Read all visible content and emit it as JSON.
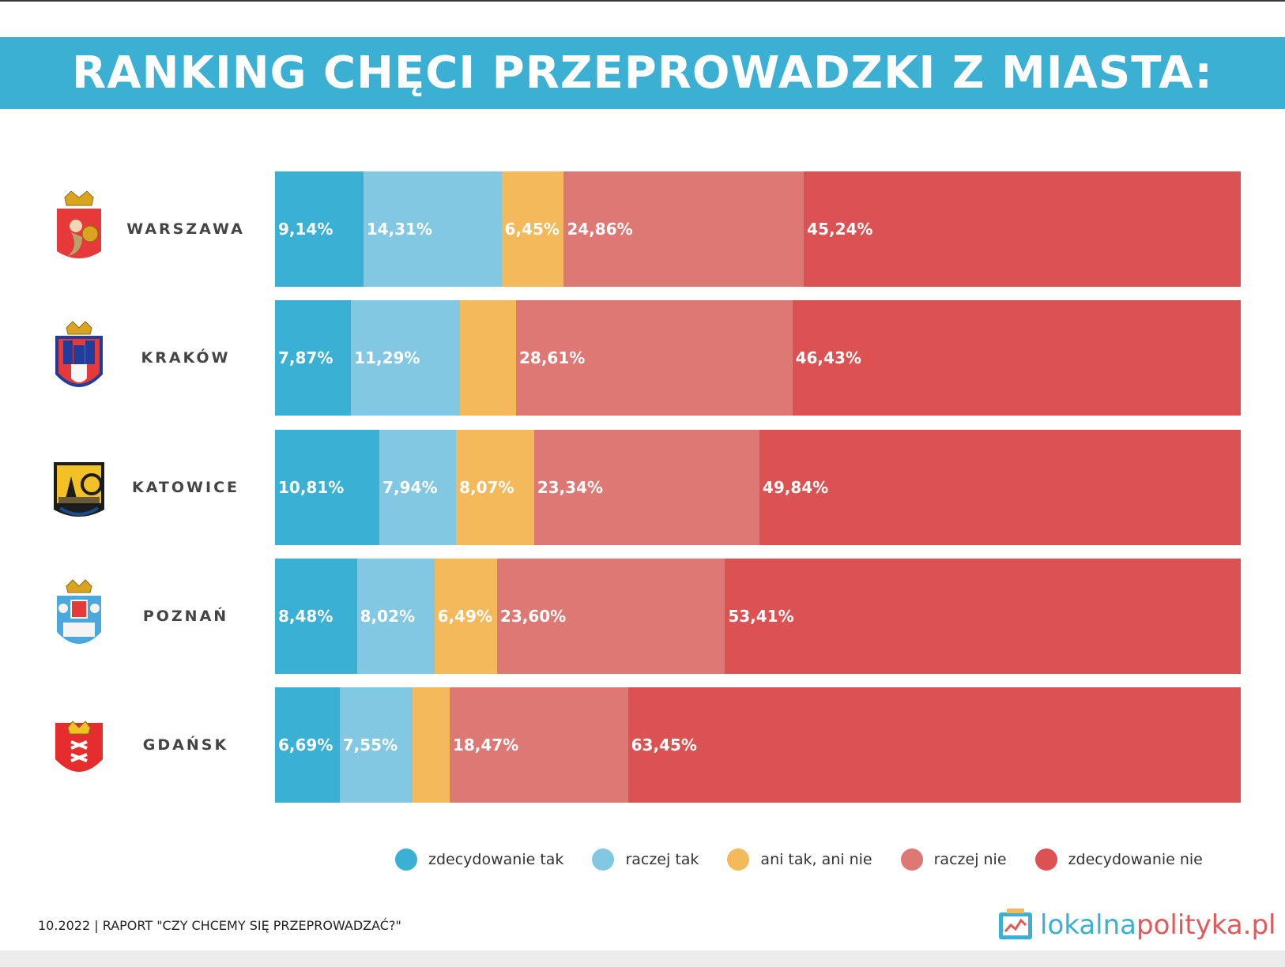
{
  "title": "RANKING CHĘCI PRZEPROWADZKI Z MIASTA:",
  "colors": [
    "#3ab0d4",
    "#82c8e2",
    "#f3b95a",
    "#de7875",
    "#dc5252"
  ],
  "chart_data": {
    "type": "bar",
    "orientation": "horizontal",
    "stacked": "percent",
    "categories": [
      "WARSZAWA",
      "KRAKÓW",
      "KATOWICE",
      "POZNAŃ",
      "GDAŃSK"
    ],
    "series": [
      {
        "name": "zdecydowanie tak",
        "values": [
          9.14,
          7.87,
          10.81,
          8.48,
          6.69
        ],
        "labels": [
          "9,14%",
          "7,87%",
          "10,81%",
          "8,48%",
          "6,69%"
        ]
      },
      {
        "name": "raczej tak",
        "values": [
          14.31,
          11.29,
          7.94,
          8.02,
          7.55
        ],
        "labels": [
          "14,31%",
          "11,29%",
          "7,94%",
          "8,02%",
          "7,55%"
        ]
      },
      {
        "name": "ani tak, ani nie",
        "values": [
          6.45,
          5.8,
          8.07,
          6.49,
          3.84
        ],
        "labels": [
          "6,45%",
          "",
          "8,07%",
          "6,49%",
          ""
        ]
      },
      {
        "name": "raczej nie",
        "values": [
          24.86,
          28.61,
          23.34,
          23.6,
          18.47
        ],
        "labels": [
          "24,86%",
          "28,61%",
          "23,34%",
          "23,60%",
          "18,47%"
        ]
      },
      {
        "name": "zdecydowanie nie",
        "values": [
          45.24,
          46.43,
          49.84,
          53.41,
          63.45
        ],
        "labels": [
          "45,24%",
          "46,43%",
          "49,84%",
          "53,41%",
          "63,45%"
        ]
      }
    ],
    "legend_position": "bottom"
  },
  "crests": [
    "warsaw-crest-icon",
    "krakow-crest-icon",
    "katowice-crest-icon",
    "poznan-crest-icon",
    "gdansk-crest-icon"
  ],
  "footer": "10.2022 | RAPORT \"CZY CHCEMY SIĘ PRZEPROWADZAĆ?\"",
  "logo": {
    "part1": "lokalna",
    "part2": "polityka.pl"
  }
}
